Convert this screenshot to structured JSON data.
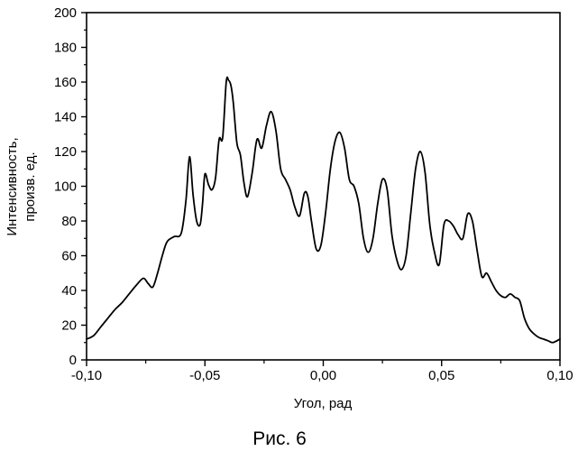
{
  "chart_data": {
    "type": "line",
    "title": "",
    "caption": "Рис. 6",
    "xlabel": "Угол, рад",
    "ylabel_lines": [
      "Интенсивность,",
      "произв. ед."
    ],
    "xlim": [
      -0.1,
      0.1
    ],
    "ylim": [
      0,
      200
    ],
    "x_ticks": [
      -0.1,
      -0.05,
      0.0,
      0.05,
      0.1
    ],
    "x_tick_labels": [
      "-0,10",
      "-0,05",
      "0,00",
      "0,05",
      "0,10"
    ],
    "y_ticks": [
      0,
      20,
      40,
      60,
      80,
      100,
      120,
      140,
      160,
      180,
      200
    ],
    "y_tick_labels": [
      "0",
      "20",
      "40",
      "60",
      "80",
      "100",
      "120",
      "140",
      "160",
      "180",
      "200"
    ],
    "grid": false,
    "legend": false,
    "line_color": "#000000",
    "series": [
      {
        "x": [
          -0.1,
          -0.097,
          -0.094,
          -0.091,
          -0.088,
          -0.085,
          -0.082,
          -0.079,
          -0.076,
          -0.074,
          -0.072,
          -0.07,
          -0.068,
          -0.066,
          -0.063,
          -0.06,
          -0.058,
          -0.0565,
          -0.055,
          -0.0535,
          -0.052,
          -0.051,
          -0.05,
          -0.0485,
          -0.047,
          -0.0455,
          -0.044,
          -0.0425,
          -0.041,
          -0.04,
          -0.039,
          -0.038,
          -0.0365,
          -0.035,
          -0.0335,
          -0.032,
          -0.03,
          -0.028,
          -0.026,
          -0.024,
          -0.022,
          -0.02,
          -0.018,
          -0.016,
          -0.014,
          -0.012,
          -0.01,
          -0.008,
          -0.0065,
          -0.005,
          -0.003,
          -0.001,
          0.001,
          0.003,
          0.005,
          0.007,
          0.009,
          0.011,
          0.013,
          0.015,
          0.017,
          0.019,
          0.021,
          0.023,
          0.025,
          0.027,
          0.029,
          0.031,
          0.033,
          0.035,
          0.037,
          0.039,
          0.041,
          0.043,
          0.045,
          0.047,
          0.049,
          0.051,
          0.053,
          0.055,
          0.057,
          0.059,
          0.061,
          0.063,
          0.065,
          0.067,
          0.069,
          0.071,
          0.073,
          0.075,
          0.077,
          0.079,
          0.081,
          0.083,
          0.085,
          0.087,
          0.089,
          0.091,
          0.093,
          0.095,
          0.097,
          0.1
        ],
        "y": [
          12,
          14,
          19,
          24,
          29,
          33,
          38,
          43,
          47,
          44,
          42,
          50,
          60,
          68,
          71,
          73,
          92,
          117,
          95,
          80,
          78,
          90,
          107,
          101,
          98,
          105,
          127,
          128,
          160,
          161,
          158,
          148,
          125,
          118,
          102,
          94,
          108,
          127,
          122,
          135,
          143,
          132,
          110,
          104,
          98,
          88,
          83,
          96,
          94,
          80,
          64,
          66,
          85,
          110,
          126,
          131,
          122,
          104,
          100,
          90,
          70,
          62,
          70,
          90,
          104,
          98,
          72,
          58,
          52,
          60,
          85,
          110,
          120,
          108,
          78,
          62,
          55,
          78,
          80,
          77,
          72,
          70,
          84,
          80,
          63,
          48,
          50,
          45,
          40,
          37,
          36,
          38,
          36,
          34,
          24,
          18,
          15,
          13,
          12,
          11,
          10,
          12
        ]
      }
    ]
  }
}
